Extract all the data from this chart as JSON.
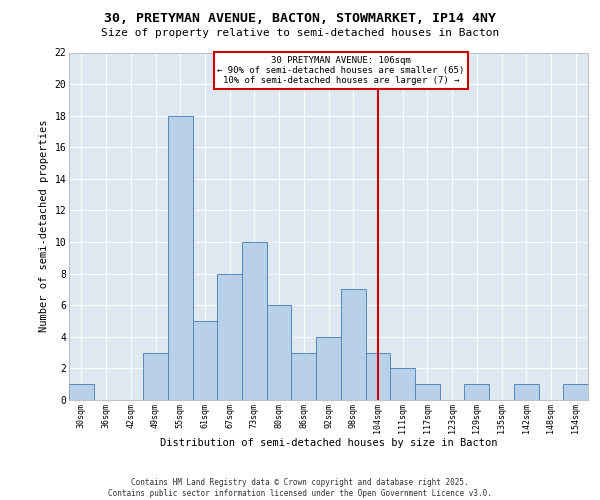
{
  "title_line1": "30, PRETYMAN AVENUE, BACTON, STOWMARKET, IP14 4NY",
  "title_line2": "Size of property relative to semi-detached houses in Bacton",
  "xlabel": "Distribution of semi-detached houses by size in Bacton",
  "ylabel": "Number of semi-detached properties",
  "categories": [
    "30sqm",
    "36sqm",
    "42sqm",
    "49sqm",
    "55sqm",
    "61sqm",
    "67sqm",
    "73sqm",
    "80sqm",
    "86sqm",
    "92sqm",
    "98sqm",
    "104sqm",
    "111sqm",
    "117sqm",
    "123sqm",
    "129sqm",
    "135sqm",
    "142sqm",
    "148sqm",
    "154sqm"
  ],
  "values": [
    1,
    0,
    0,
    3,
    18,
    5,
    8,
    10,
    6,
    3,
    4,
    7,
    3,
    2,
    1,
    0,
    1,
    0,
    1,
    0,
    1
  ],
  "bar_color": "#b8d0e8",
  "bar_edge_color": "#5588bb",
  "vline_x_index": 12,
  "vline_color": "#cc0000",
  "annotation_text": "30 PRETYMAN AVENUE: 106sqm\n← 90% of semi-detached houses are smaller (65)\n10% of semi-detached houses are larger (7) →",
  "annotation_box_color": "#cc0000",
  "annotation_box_facecolor": "white",
  "ylim": [
    0,
    22
  ],
  "yticks": [
    0,
    2,
    4,
    6,
    8,
    10,
    12,
    14,
    16,
    18,
    20,
    22
  ],
  "bg_color": "#dde8f0",
  "grid_color": "white",
  "footer_line1": "Contains HM Land Registry data © Crown copyright and database right 2025.",
  "footer_line2": "Contains public sector information licensed under the Open Government Licence v3.0."
}
